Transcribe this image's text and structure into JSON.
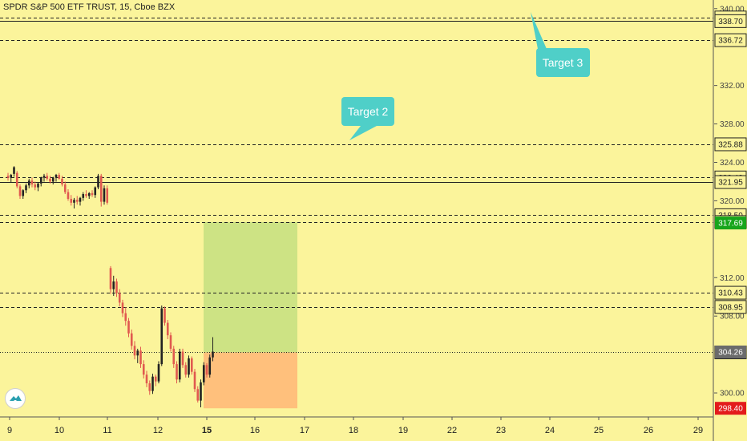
{
  "symbol_title": "SPDR S&P 500 ETF TRUST, 15, Cboe BZX",
  "colors": {
    "background": "#fbf49b",
    "up": "#222222",
    "down": "#e0594f",
    "target_zone": "#cde384",
    "stop_zone": "#ffc07c",
    "callout": "#4fcfc8",
    "last_price_bg": "#18a51b",
    "stop_bg": "#e31b1b",
    "current_bg": "#6b6b6b"
  },
  "callouts": [
    {
      "text": "Target 2"
    },
    {
      "text": "Target 3"
    }
  ],
  "chart_data": {
    "type": "candlestick",
    "title": "SPDR S&P 500 ETF TRUST, 15, Cboe BZX",
    "ylim": [
      297.5,
      340.9
    ],
    "price_ticks": [
      340.0,
      332.0,
      328.0,
      324.0,
      320.0,
      312.0,
      308.0,
      300.0
    ],
    "x_tick_labels": [
      "9",
      "10",
      "11",
      "12",
      "15",
      "16",
      "17",
      "18",
      "19",
      "22",
      "23",
      "24",
      "25",
      "26",
      "29"
    ],
    "horizontal_levels": [
      {
        "price": 339.08,
        "label": "339.08",
        "style": "dashed"
      },
      {
        "price": 338.7,
        "label": "338.70",
        "style": "solid"
      },
      {
        "price": 336.72,
        "label": "336.72",
        "style": "dashed"
      },
      {
        "price": 325.88,
        "label": "325.88",
        "style": "dashed"
      },
      {
        "price": 322.43,
        "label": "322.43",
        "style": "dashed"
      },
      {
        "price": 321.95,
        "label": "321.95",
        "style": "solid"
      },
      {
        "price": 318.5,
        "label": "318.50",
        "style": "dashed"
      },
      {
        "price": 317.79,
        "label": "317.79",
        "style": "dashed"
      },
      {
        "price": 310.43,
        "label": "310.43",
        "style": "dashed"
      },
      {
        "price": 308.95,
        "label": "308.95",
        "style": "dashed"
      },
      {
        "price": 304.22,
        "label": "304.22",
        "style": "dotted"
      }
    ],
    "price_badges": [
      {
        "price": 317.69,
        "label": "317.69",
        "kind": "last"
      },
      {
        "price": 304.26,
        "label": "304.26",
        "kind": "current"
      },
      {
        "price": 298.4,
        "label": "298.40",
        "kind": "stop"
      }
    ],
    "position": {
      "entry": 304.22,
      "target": 317.79,
      "stop": 298.4
    },
    "candles": [
      [
        322.6,
        322.9,
        322.1,
        322.4
      ],
      [
        322.4,
        322.8,
        321.9,
        322.7
      ],
      [
        322.8,
        323.6,
        322.5,
        323.5
      ],
      [
        322.9,
        323.1,
        321.3,
        321.5
      ],
      [
        321.5,
        321.7,
        320.2,
        320.5
      ],
      [
        320.5,
        321.2,
        320.2,
        321.1
      ],
      [
        321.1,
        321.8,
        320.8,
        321.6
      ],
      [
        321.6,
        322.3,
        321.3,
        322.1
      ],
      [
        322.1,
        322.4,
        321.4,
        321.7
      ],
      [
        321.7,
        322.0,
        321.1,
        321.4
      ],
      [
        321.4,
        321.9,
        321.0,
        321.8
      ],
      [
        321.8,
        322.5,
        321.5,
        322.4
      ],
      [
        322.4,
        322.8,
        322.0,
        322.6
      ],
      [
        322.6,
        322.9,
        322.1,
        322.3
      ],
      [
        322.3,
        322.6,
        321.8,
        322.0
      ],
      [
        322.0,
        322.5,
        321.7,
        322.4
      ],
      [
        322.4,
        322.8,
        322.0,
        322.7
      ],
      [
        322.7,
        322.9,
        322.2,
        322.3
      ],
      [
        322.3,
        322.6,
        321.5,
        321.7
      ],
      [
        321.7,
        322.0,
        320.7,
        320.9
      ],
      [
        320.9,
        321.2,
        320.0,
        320.2
      ],
      [
        320.2,
        320.6,
        319.5,
        319.8
      ],
      [
        319.8,
        320.3,
        319.2,
        320.1
      ],
      [
        320.1,
        320.5,
        319.6,
        319.9
      ],
      [
        319.9,
        320.4,
        319.5,
        320.3
      ],
      [
        320.3,
        320.9,
        320.0,
        320.7
      ],
      [
        320.7,
        321.1,
        320.3,
        320.5
      ],
      [
        320.5,
        320.9,
        320.2,
        320.8
      ],
      [
        320.8,
        321.1,
        320.4,
        320.6
      ],
      [
        320.6,
        321.5,
        320.3,
        321.4
      ],
      [
        321.4,
        322.8,
        321.2,
        322.6
      ],
      [
        322.6,
        322.8,
        319.4,
        319.9
      ],
      [
        319.9,
        321.6,
        319.6,
        321.3
      ],
      [
        321.3,
        321.6,
        319.6,
        319.8
      ],
      [
        313.0,
        313.2,
        310.3,
        310.8
      ],
      [
        310.8,
        312.2,
        310.1,
        311.6
      ],
      [
        311.6,
        311.9,
        310.0,
        310.4
      ],
      [
        310.4,
        310.8,
        309.0,
        309.4
      ],
      [
        309.4,
        309.7,
        307.9,
        308.3
      ],
      [
        308.3,
        308.9,
        307.0,
        307.5
      ],
      [
        307.5,
        307.8,
        305.8,
        306.2
      ],
      [
        306.2,
        306.6,
        304.5,
        304.9
      ],
      [
        304.9,
        305.4,
        303.5,
        303.9
      ],
      [
        303.9,
        304.6,
        303.1,
        304.4
      ],
      [
        304.4,
        304.8,
        302.6,
        303.0
      ],
      [
        303.0,
        303.4,
        301.5,
        301.9
      ],
      [
        301.9,
        302.3,
        300.6,
        301.0
      ],
      [
        301.0,
        301.3,
        299.8,
        300.2
      ],
      [
        300.2,
        302.0,
        299.9,
        301.7
      ],
      [
        301.7,
        301.9,
        300.7,
        301.2
      ],
      [
        301.2,
        303.3,
        301.0,
        303.0
      ],
      [
        303.0,
        309.1,
        302.8,
        308.8
      ],
      [
        308.8,
        309.0,
        307.0,
        307.3
      ],
      [
        307.3,
        307.6,
        305.6,
        306.0
      ],
      [
        306.0,
        306.3,
        304.3,
        304.6
      ],
      [
        304.6,
        304.9,
        302.6,
        303.0
      ],
      [
        303.0,
        303.3,
        301.0,
        301.4
      ],
      [
        301.4,
        304.6,
        301.1,
        304.3
      ],
      [
        304.3,
        304.6,
        302.6,
        302.9
      ],
      [
        302.9,
        303.2,
        301.6,
        301.9
      ],
      [
        301.9,
        303.9,
        301.6,
        303.6
      ],
      [
        303.6,
        303.8,
        301.9,
        302.2
      ],
      [
        302.2,
        302.5,
        300.1,
        300.4
      ],
      [
        300.4,
        300.7,
        299.0,
        299.2
      ],
      [
        299.2,
        301.4,
        298.5,
        301.1
      ],
      [
        301.1,
        303.2,
        300.8,
        302.9
      ],
      [
        302.9,
        303.1,
        301.6,
        301.9
      ],
      [
        301.9,
        304.0,
        301.6,
        303.7
      ],
      [
        303.7,
        305.8,
        303.3,
        304.3
      ]
    ]
  }
}
